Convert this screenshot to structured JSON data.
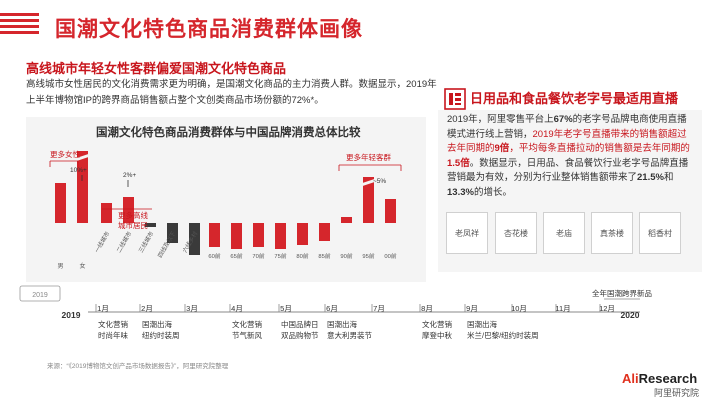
{
  "page": {
    "title": "国潮文化特色商品消费群体画像",
    "headline": "高线城市年轻女性客群偏爱国潮文化特色商品",
    "body": "高线城市女性居民的文化消费需求更为明确，是国潮文化商品的主力消费人群。数据显示，2019年上半年博物馆IP的跨界商品销售额占整个文创类商品市场份额的72%*。",
    "source": "来源：“《2019博物馆文创产品市场数据报告》”，阿里研究院整理",
    "brand": {
      "prefix": "Ali",
      "suffix": "Research",
      "cn": "阿里研究院"
    },
    "colors": {
      "accent": "#c8161d",
      "bar_red": "#d5262c",
      "bar_gray": "#3a3a3a"
    }
  },
  "chart_data": {
    "type": "bar",
    "title": "国潮文化特色商品消费群体与中国品牌消费总体比较",
    "categories": [
      "男",
      "女",
      "一线城市",
      "二线城市",
      "三线城市",
      "四线及以下",
      "六线乡村",
      "60前",
      "65前",
      "70前",
      "75前",
      "80前",
      "85前",
      "90前",
      "95前",
      "00前"
    ],
    "values": [
      20,
      36,
      10,
      13,
      -2,
      -10,
      -16,
      -12,
      -13,
      -12,
      -13,
      -11,
      -9,
      3,
      23,
      12
    ],
    "series_colors": [
      "red",
      "red",
      "red",
      "red",
      "gray",
      "gray",
      "gray",
      "red",
      "red",
      "red",
      "red",
      "red",
      "red",
      "red",
      "red",
      "red"
    ],
    "groups": [
      "gender",
      "city",
      "age"
    ],
    "annotations": {
      "more_female": "更多女性",
      "pct_10": "10%+",
      "pct_2": "2%+",
      "more_high_tier": "更多高线\n城市居民",
      "more_young": "更多年轻客群",
      "pct_5": "~5%"
    }
  },
  "right": {
    "heading": "日用品和食品餐饮老字号最适用直播",
    "p1": "2019年，阿里零售平台上",
    "p1_b": "67%",
    "p2": "的老字号品牌电商使用直播模式进行线上营销，",
    "p3_hl": "2019年老字号直播带来的销售额超过去年同期的",
    "p3_b": "9倍",
    "p4_hl": "，平均每条直播拉动的销售额是去年同期的",
    "p4_b": "1.5倍",
    "p5": "。数据显示，日用品、食品餐饮行业老字号品牌直播营销最为有效，分别为行业整体销售额带来了",
    "p5_b1": "21.5%",
    "p6": "和",
    "p5_b2": "13.3%",
    "p7": "的增长。",
    "logos": [
      "老凤祥",
      "杏花楼",
      "老庙",
      "真茶楼",
      "稻香村"
    ]
  },
  "timeline": {
    "year_start": "2019",
    "year_end": "2020",
    "months": [
      "1月",
      "2月",
      "3月",
      "4月",
      "5月",
      "6月",
      "7月",
      "8月",
      "9月",
      "10月",
      "11月",
      "12月"
    ],
    "top_event": "全年国潮跨界新品",
    "events": [
      {
        "month": "1月",
        "text": "文化营销\n时尚年味"
      },
      {
        "month": "2月",
        "text": "国潮出海\n纽约时装周"
      },
      {
        "month": "4月",
        "text": "文化营销\n节气新风"
      },
      {
        "month": "5月",
        "text": "中国品牌日\n双品购物节"
      },
      {
        "month": "6月",
        "text": "国潮出海\n意大利男装节"
      },
      {
        "month": "8月",
        "text": "文化营销\n摩登中秋"
      },
      {
        "month": "9月",
        "text": "国潮出海\n米兰/巴黎/纽约时装周"
      }
    ]
  }
}
